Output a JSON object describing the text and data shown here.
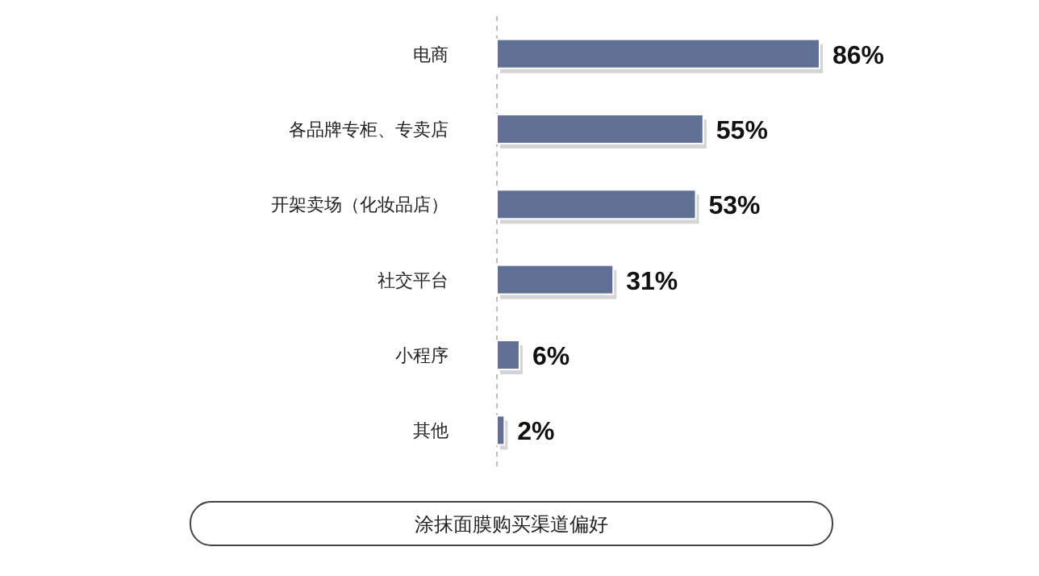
{
  "chart_data": {
    "type": "bar",
    "orientation": "horizontal",
    "title": "涂抹面膜购买渠道偏好",
    "categories": [
      "电商",
      "各品牌专柜、专卖店",
      "开架卖场（化妆品店）",
      "社交平台",
      "小程序",
      "其他"
    ],
    "values": [
      86,
      55,
      53,
      31,
      6,
      2
    ],
    "value_labels": [
      "86%",
      "55%",
      "53%",
      "31%",
      "6%",
      "2%"
    ],
    "color": "#5f7094"
  }
}
